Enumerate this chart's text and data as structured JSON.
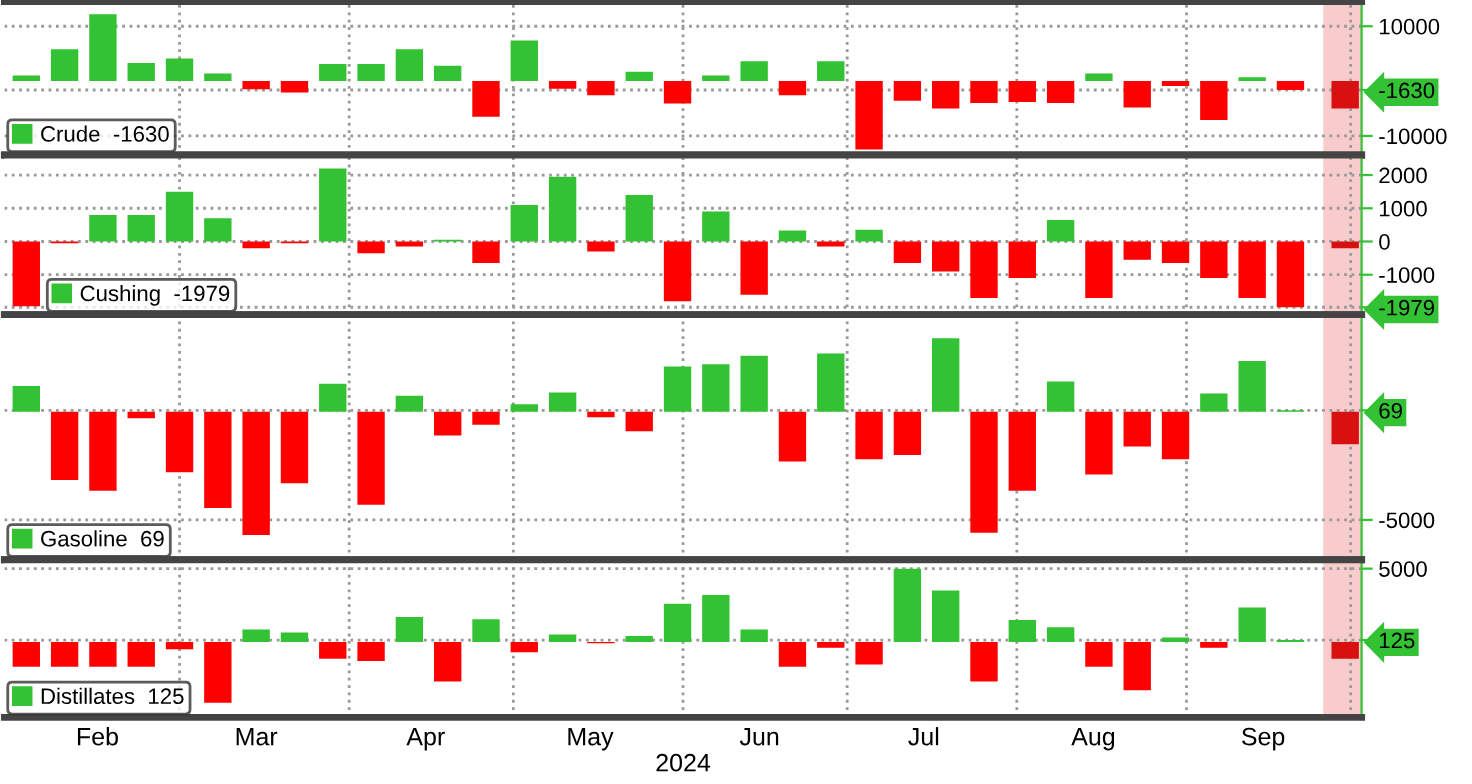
{
  "chart_data": [
    {
      "type": "bar",
      "ylim": [
        -13500,
        14500
      ],
      "yticks": [
        10000,
        -1630,
        -10000
      ],
      "grid": true,
      "legend": "bottom left",
      "tick_labels": "y",
      "x": [
        "2024-02-02",
        "2024-02-09",
        "2024-02-16",
        "2024-02-23",
        "2024-03-01",
        "2024-03-08",
        "2024-03-15",
        "2024-03-22",
        "2024-03-29",
        "2024-04-05",
        "2024-04-12",
        "2024-04-19",
        "2024-04-26",
        "2024-05-03",
        "2024-05-10",
        "2024-05-17",
        "2024-05-24",
        "2024-05-31",
        "2024-06-07",
        "2024-06-14",
        "2024-06-21",
        "2024-06-28",
        "2024-07-05",
        "2024-07-12",
        "2024-07-19",
        "2024-07-26",
        "2024-08-02",
        "2024-08-09",
        "2024-08-16",
        "2024-08-23",
        "2024-08-30",
        "2024-09-06",
        "2024-09-13",
        "2024-09-20"
      ],
      "xlim": [
        "2024-01-29",
        "2024-10-03"
      ],
      "xticks": [
        {
          "value": "2024-03-01",
          "label": null
        },
        {
          "value": "2024-04-01",
          "label": null
        },
        {
          "value": "2024-05-01",
          "label": null
        },
        {
          "value": "2024-06-01",
          "label": null
        },
        {
          "value": "2024-07-01",
          "label": null
        },
        {
          "value": "2024-08-01",
          "label": null
        },
        {
          "value": "2024-09-01",
          "label": null
        },
        {
          "value": "2024-10-01",
          "label": null
        }
      ],
      "bands": [
        {
          "axis": "x",
          "from": "2024-09-26",
          "to": "2024-10-03",
          "color": "#f8cccc"
        }
      ],
      "series": [
        {
          "name": "Crude  -1630",
          "color": "#33c233",
          "values": [
            1000,
            5800,
            12200,
            3300,
            4100,
            1400,
            -1500,
            -2100,
            3100,
            3100,
            5800,
            2800,
            -6500,
            7400,
            -1400,
            -2600,
            1700,
            -4100,
            1000,
            3600,
            -2600,
            3600,
            -12500,
            -3600,
            -5000,
            -4000,
            -3800,
            -4000,
            1400,
            -4800,
            -900,
            -7100,
            700,
            -1630
          ],
          "colors": [
            "#33c233",
            "#33c233",
            "#33c233",
            "#33c233",
            "#33c233",
            "#33c233",
            "#ff0000",
            "#ff0000",
            "#33c233",
            "#33c233",
            "#33c233",
            "#33c233",
            "#ff0000",
            "#33c233",
            "#ff0000",
            "#ff0000",
            "#33c233",
            "#ff0000",
            "#33c233",
            "#33c233",
            "#ff0000",
            "#33c233",
            "#ff0000",
            "#ff0000",
            "#ff0000",
            "#ff0000",
            "#ff0000",
            "#ff0000",
            "#33c233",
            "#ff0000",
            "#ff0000",
            "#ff0000",
            "#33c233",
            "#ff0000"
          ]
        },
        {
          "color": "#d81010",
          "x": [
            "2024-09-30"
          ],
          "values": [
            -5000
          ]
        }
      ]
    },
    {
      "type": "bar",
      "ylim": [
        -2200,
        2600
      ],
      "yticks": [
        2000,
        1000,
        0,
        -1000,
        -1979
      ],
      "grid": true,
      "legend": "bottom left",
      "tick_labels": "y",
      "x": [
        "2024-02-02",
        "2024-02-09",
        "2024-02-16",
        "2024-02-23",
        "2024-03-01",
        "2024-03-08",
        "2024-03-15",
        "2024-03-22",
        "2024-03-29",
        "2024-04-05",
        "2024-04-12",
        "2024-04-19",
        "2024-04-26",
        "2024-05-03",
        "2024-05-10",
        "2024-05-17",
        "2024-05-24",
        "2024-05-31",
        "2024-06-07",
        "2024-06-14",
        "2024-06-21",
        "2024-06-28",
        "2024-07-05",
        "2024-07-12",
        "2024-07-19",
        "2024-07-26",
        "2024-08-02",
        "2024-08-09",
        "2024-08-16",
        "2024-08-23",
        "2024-08-30",
        "2024-09-06",
        "2024-09-13",
        "2024-09-20"
      ],
      "xlim": [
        "2024-01-29",
        "2024-10-03"
      ],
      "xticks": [
        {
          "value": "2024-03-01",
          "label": null
        },
        {
          "value": "2024-04-01",
          "label": null
        },
        {
          "value": "2024-05-01",
          "label": null
        },
        {
          "value": "2024-06-01",
          "label": null
        },
        {
          "value": "2024-07-01",
          "label": null
        },
        {
          "value": "2024-08-01",
          "label": null
        },
        {
          "value": "2024-09-01",
          "label": null
        },
        {
          "value": "2024-10-01",
          "label": null
        }
      ],
      "bands": [
        {
          "axis": "x",
          "from": "2024-09-26",
          "to": "2024-10-03",
          "color": "#f8cccc"
        }
      ],
      "series": [
        {
          "name": "Cushing  -1979",
          "color": "#33c233",
          "values": [
            -1950,
            -50,
            800,
            800,
            1500,
            700,
            -200,
            -50,
            2200,
            -350,
            -150,
            50,
            -650,
            1100,
            1950,
            -300,
            1400,
            -1800,
            900,
            -1600,
            330,
            -150,
            350,
            -650,
            -900,
            -1700,
            -1100,
            650,
            -1700,
            -550,
            -650,
            -1100,
            -1700,
            -1979
          ],
          "colors": [
            "#ff0000",
            "#ff0000",
            "#33c233",
            "#33c233",
            "#33c233",
            "#33c233",
            "#ff0000",
            "#ff0000",
            "#33c233",
            "#ff0000",
            "#ff0000",
            "#33c233",
            "#ff0000",
            "#33c233",
            "#33c233",
            "#ff0000",
            "#33c233",
            "#ff0000",
            "#33c233",
            "#ff0000",
            "#33c233",
            "#ff0000",
            "#33c233",
            "#ff0000",
            "#ff0000",
            "#ff0000",
            "#ff0000",
            "#33c233",
            "#ff0000",
            "#ff0000",
            "#ff0000",
            "#ff0000",
            "#ff0000",
            "#ff0000"
          ]
        },
        {
          "color": "#d81010",
          "x": [
            "2024-09-30"
          ],
          "values": [
            -200
          ]
        }
      ]
    },
    {
      "type": "bar",
      "ylim": [
        -6850,
        4500
      ],
      "yticks": [
        69,
        -5000
      ],
      "grid": true,
      "legend": "bottom left",
      "tick_labels": "y",
      "x": [
        "2024-02-02",
        "2024-02-09",
        "2024-02-16",
        "2024-02-23",
        "2024-03-01",
        "2024-03-08",
        "2024-03-15",
        "2024-03-22",
        "2024-03-29",
        "2024-04-05",
        "2024-04-12",
        "2024-04-19",
        "2024-04-26",
        "2024-05-03",
        "2024-05-10",
        "2024-05-17",
        "2024-05-24",
        "2024-05-31",
        "2024-06-07",
        "2024-06-14",
        "2024-06-21",
        "2024-06-28",
        "2024-07-05",
        "2024-07-12",
        "2024-07-19",
        "2024-07-26",
        "2024-08-02",
        "2024-08-09",
        "2024-08-16",
        "2024-08-23",
        "2024-08-30",
        "2024-09-06",
        "2024-09-13",
        "2024-09-20"
      ],
      "xlim": [
        "2024-01-29",
        "2024-10-03"
      ],
      "xticks": [
        {
          "value": "2024-03-01",
          "label": null
        },
        {
          "value": "2024-04-01",
          "label": null
        },
        {
          "value": "2024-05-01",
          "label": null
        },
        {
          "value": "2024-06-01",
          "label": null
        },
        {
          "value": "2024-07-01",
          "label": null
        },
        {
          "value": "2024-08-01",
          "label": null
        },
        {
          "value": "2024-09-01",
          "label": null
        },
        {
          "value": "2024-10-01",
          "label": null
        }
      ],
      "bands": [
        {
          "axis": "x",
          "from": "2024-09-26",
          "to": "2024-10-03",
          "color": "#f8cccc"
        }
      ],
      "series": [
        {
          "name": "Gasoline  69",
          "color": "#33c233",
          "values": [
            1200,
            -3150,
            -3650,
            -300,
            -2800,
            -4450,
            -5700,
            -3300,
            1300,
            -4300,
            750,
            -1100,
            -600,
            350,
            900,
            -250,
            -900,
            2100,
            2200,
            2600,
            -2300,
            2700,
            -2200,
            -2000,
            3400,
            -5600,
            -3650,
            1400,
            -2900,
            -1600,
            -2200,
            850,
            2350,
            69
          ],
          "colors": [
            "#33c233",
            "#ff0000",
            "#ff0000",
            "#ff0000",
            "#ff0000",
            "#ff0000",
            "#ff0000",
            "#ff0000",
            "#33c233",
            "#ff0000",
            "#33c233",
            "#ff0000",
            "#ff0000",
            "#33c233",
            "#33c233",
            "#ff0000",
            "#ff0000",
            "#33c233",
            "#33c233",
            "#33c233",
            "#ff0000",
            "#33c233",
            "#ff0000",
            "#ff0000",
            "#33c233",
            "#ff0000",
            "#ff0000",
            "#33c233",
            "#ff0000",
            "#ff0000",
            "#ff0000",
            "#33c233",
            "#33c233",
            "#33c233"
          ]
        },
        {
          "color": "#d81010",
          "x": [
            "2024-09-30"
          ],
          "values": [
            -1500
          ]
        }
      ]
    },
    {
      "type": "bar",
      "ylim": [
        -5150,
        5600
      ],
      "yticks": [
        5000,
        125
      ],
      "grid": true,
      "legend": "bottom left",
      "xlabel": "2024",
      "x": [
        "2024-02-02",
        "2024-02-09",
        "2024-02-16",
        "2024-02-23",
        "2024-03-01",
        "2024-03-08",
        "2024-03-15",
        "2024-03-22",
        "2024-03-29",
        "2024-04-05",
        "2024-04-12",
        "2024-04-19",
        "2024-04-26",
        "2024-05-03",
        "2024-05-10",
        "2024-05-17",
        "2024-05-24",
        "2024-05-31",
        "2024-06-07",
        "2024-06-14",
        "2024-06-21",
        "2024-06-28",
        "2024-07-05",
        "2024-07-12",
        "2024-07-19",
        "2024-07-26",
        "2024-08-02",
        "2024-08-09",
        "2024-08-16",
        "2024-08-23",
        "2024-08-30",
        "2024-09-06",
        "2024-09-13",
        "2024-09-20"
      ],
      "xlim": [
        "2024-01-29",
        "2024-10-03"
      ],
      "xticks": [
        {
          "value": "2024-02-15",
          "label": "Feb"
        },
        {
          "value": "2024-03-01",
          "label": null
        },
        {
          "value": "2024-03-15",
          "label": "Mar"
        },
        {
          "value": "2024-04-01",
          "label": null
        },
        {
          "value": "2024-04-15",
          "label": "Apr"
        },
        {
          "value": "2024-05-01",
          "label": null
        },
        {
          "value": "2024-05-15",
          "label": "May"
        },
        {
          "value": "2024-06-01",
          "label": null
        },
        {
          "value": "2024-06-15",
          "label": "Jun"
        },
        {
          "value": "2024-07-01",
          "label": null
        },
        {
          "value": "2024-07-15",
          "label": "Jul"
        },
        {
          "value": "2024-08-01",
          "label": null
        },
        {
          "value": "2024-08-15",
          "label": "Aug"
        },
        {
          "value": "2024-09-01",
          "label": null
        },
        {
          "value": "2024-09-15",
          "label": "Sep"
        },
        {
          "value": "2024-10-01",
          "label": null
        }
      ],
      "bands": [
        {
          "axis": "x",
          "from": "2024-09-26",
          "to": "2024-10-03",
          "color": "#f8cccc"
        }
      ],
      "series": [
        {
          "name": "Distillates  125",
          "color": "#33c233",
          "values": [
            -1700,
            -1700,
            -1700,
            -1700,
            -500,
            -4150,
            850,
            650,
            -1150,
            -1300,
            1700,
            -2700,
            1550,
            -700,
            500,
            -100,
            400,
            2600,
            3200,
            850,
            -1700,
            -400,
            -1550,
            5000,
            3500,
            -2700,
            1500,
            1000,
            -1700,
            -3300,
            300,
            -400,
            2350,
            125
          ],
          "colors": [
            "#ff0000",
            "#ff0000",
            "#ff0000",
            "#ff0000",
            "#ff0000",
            "#ff0000",
            "#33c233",
            "#33c233",
            "#ff0000",
            "#ff0000",
            "#33c233",
            "#ff0000",
            "#33c233",
            "#ff0000",
            "#33c233",
            "#ff0000",
            "#33c233",
            "#33c233",
            "#33c233",
            "#33c233",
            "#ff0000",
            "#ff0000",
            "#ff0000",
            "#33c233",
            "#33c233",
            "#ff0000",
            "#33c233",
            "#33c233",
            "#ff0000",
            "#ff0000",
            "#33c233",
            "#ff0000",
            "#33c233",
            "#33c233"
          ]
        },
        {
          "color": "#d81010",
          "x": [
            "2024-09-30"
          ],
          "values": [
            -1150
          ]
        }
      ]
    }
  ]
}
